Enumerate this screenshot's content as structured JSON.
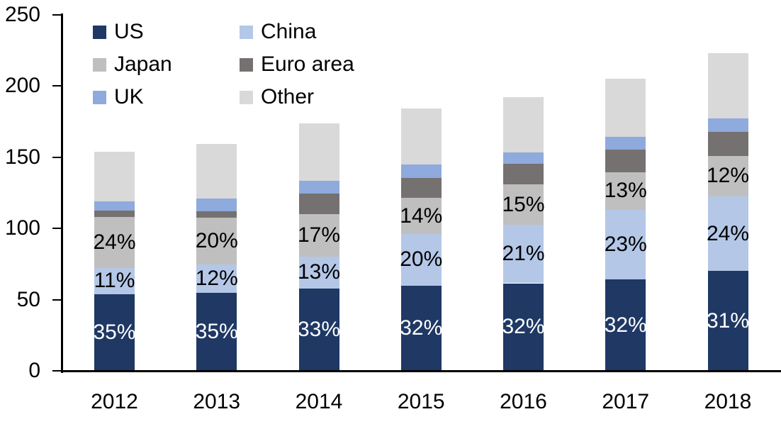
{
  "chart_data": {
    "type": "bar",
    "stacked": true,
    "title": "",
    "xlabel": "",
    "ylabel": "",
    "categories": [
      "2012",
      "2013",
      "2014",
      "2015",
      "2016",
      "2017",
      "2018"
    ],
    "series": [
      {
        "name": "US",
        "color": "#1f3864",
        "values": [
          54,
          55,
          58,
          60,
          61.5,
          64,
          70
        ],
        "labels": [
          "35%",
          "35%",
          "33%",
          "32%",
          "32%",
          "32%",
          "31%"
        ],
        "label_color": "#ffffff"
      },
      {
        "name": "China",
        "color": "#b4c7e7",
        "values": [
          18,
          19.5,
          22,
          36,
          41,
          49,
          52.5
        ],
        "labels": [
          "11%",
          "12%",
          "13%",
          "20%",
          "21%",
          "23%",
          "24%"
        ],
        "label_color": "#000000"
      },
      {
        "name": "Japan",
        "color": "#bfbfbf",
        "values": [
          36,
          33,
          30,
          25.5,
          28.5,
          26.5,
          28.5
        ],
        "labels": [
          "24%",
          "20%",
          "17%",
          "14%",
          "15%",
          "13%",
          "12%"
        ],
        "label_color": "#000000"
      },
      {
        "name": "Euro area",
        "color": "#757171",
        "values": [
          4.5,
          4.5,
          14.5,
          14,
          14.5,
          16,
          17
        ],
        "labels": null,
        "label_color": "#000000"
      },
      {
        "name": "UK",
        "color": "#8faadc",
        "values": [
          6.5,
          9,
          9,
          9.5,
          8,
          9,
          9.5
        ],
        "labels": null,
        "label_color": "#000000"
      },
      {
        "name": "Other",
        "color": "#d9d9d9",
        "values": [
          35,
          38.5,
          40.5,
          39.5,
          38.5,
          40.5,
          45.5
        ],
        "labels": null,
        "label_color": "#000000"
      }
    ],
    "totals": [
      154,
      160,
      174,
      184.5,
      192,
      205,
      223
    ],
    "y_axis": {
      "min": 0,
      "max": 250,
      "tick_interval": 50,
      "tick_labels": [
        "0",
        "50",
        "100",
        "150",
        "200",
        "250"
      ]
    },
    "legend": {
      "position": "top-left",
      "columns": 2,
      "entries": [
        "US",
        "China",
        "Japan",
        "Euro area",
        "UK",
        "Other"
      ]
    },
    "grid": false,
    "axis_color": "#000000"
  }
}
